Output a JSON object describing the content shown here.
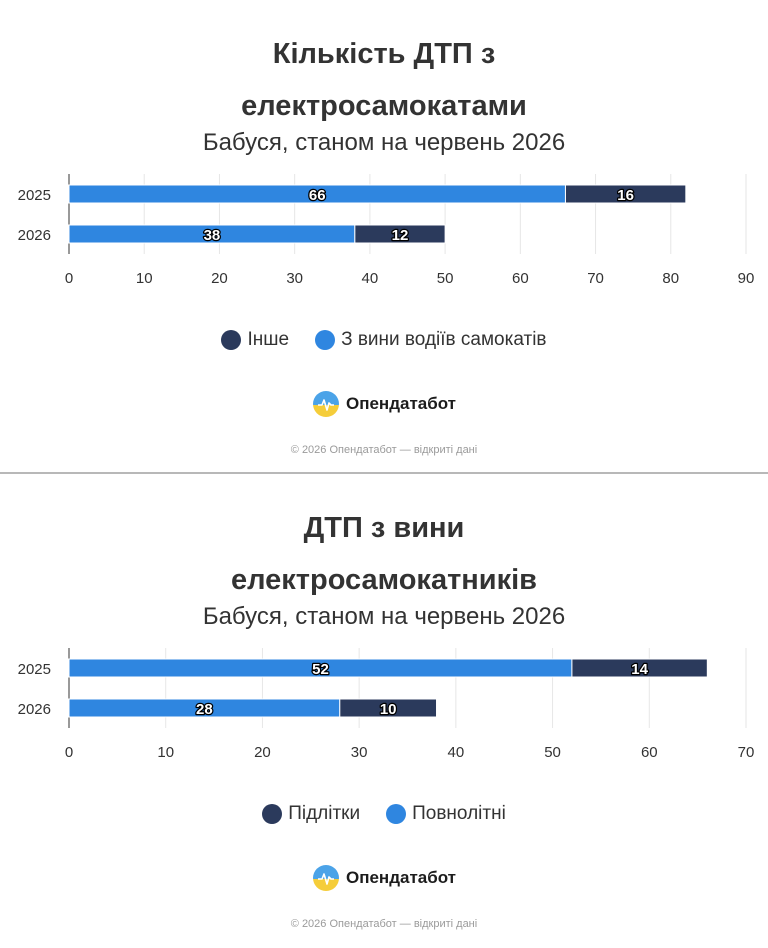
{
  "colors": {
    "dark": "#2b3a5c",
    "blue": "#2f86e0",
    "grid": "#e6e6e6",
    "axis": "#333333"
  },
  "brand": {
    "name": "Опендатабот",
    "icon": "opendatabot-logo-icon"
  },
  "footer": "© 2026 Опендатабот — відкриті дані",
  "chart_data": [
    {
      "type": "bar",
      "orientation": "horizontal",
      "stacked": true,
      "title_line1": "Кількість ДТП з",
      "title_line2": "електросамокатами",
      "subtitle": "Бабуся, станом на червень 2026",
      "categories": [
        "2025",
        "2026"
      ],
      "series": [
        {
          "name": "З вини водіїв самокатів",
          "color": "#2f86e0",
          "values": [
            66,
            38
          ]
        },
        {
          "name": "Інше",
          "color": "#2b3a5c",
          "values": [
            16,
            12
          ]
        }
      ],
      "legend": [
        {
          "name": "Інше",
          "color": "#2b3a5c"
        },
        {
          "name": "З вини водіїв самокатів",
          "color": "#2f86e0"
        }
      ],
      "xlim": [
        0,
        90
      ],
      "xticks": [
        0,
        10,
        20,
        30,
        40,
        50,
        60,
        70,
        80,
        90
      ],
      "grid": true,
      "legend_position": "bottom"
    },
    {
      "type": "bar",
      "orientation": "horizontal",
      "stacked": true,
      "title_line1": "ДТП з вини",
      "title_line2": "електросамокатників",
      "subtitle": "Бабуся, станом на червень 2026",
      "categories": [
        "2025",
        "2026"
      ],
      "series": [
        {
          "name": "Повнолітні",
          "color": "#2f86e0",
          "values": [
            52,
            28
          ]
        },
        {
          "name": "Підлітки",
          "color": "#2b3a5c",
          "values": [
            14,
            10
          ]
        }
      ],
      "legend": [
        {
          "name": "Підлітки",
          "color": "#2b3a5c"
        },
        {
          "name": "Повнолітні",
          "color": "#2f86e0"
        }
      ],
      "xlim": [
        0,
        70
      ],
      "xticks": [
        0,
        10,
        20,
        30,
        40,
        50,
        60,
        70
      ],
      "grid": true,
      "legend_position": "bottom"
    }
  ]
}
